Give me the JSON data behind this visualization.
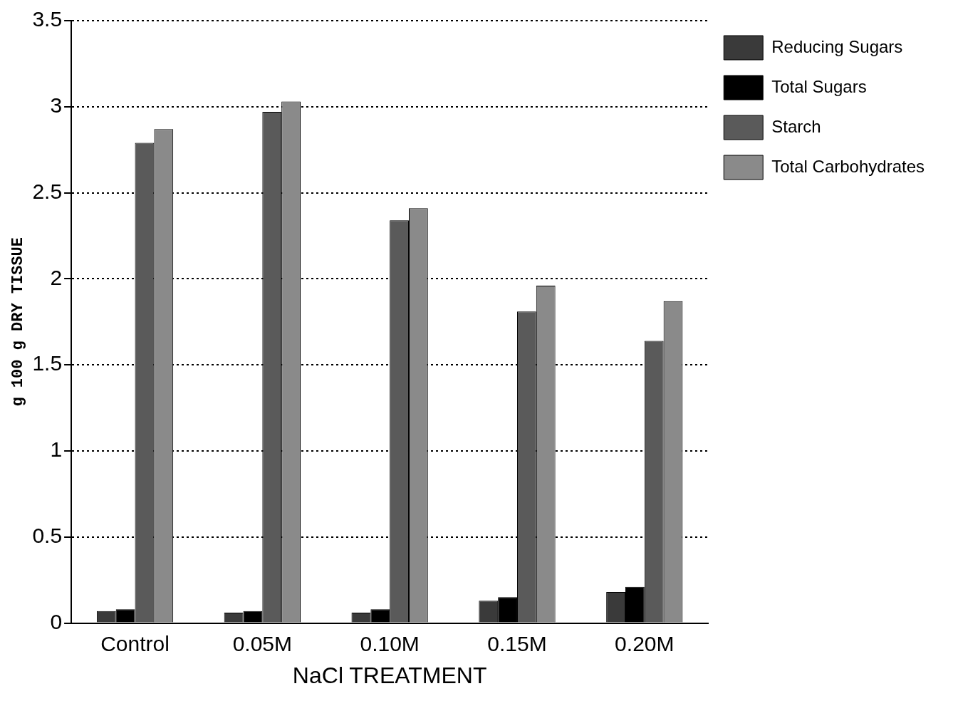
{
  "chart_data": {
    "type": "bar",
    "xlabel": "NaCl TREATMENT",
    "ylabel": "g 100 g DRY TISSUE",
    "categories": [
      "Control",
      "0.05M",
      "0.10M",
      "0.15M",
      "0.20M"
    ],
    "series": [
      {
        "name": "Reducing Sugars",
        "color": "#3a3a3a",
        "values": [
          0.07,
          0.06,
          0.06,
          0.13,
          0.18
        ]
      },
      {
        "name": "Total Sugars",
        "color": "#000000",
        "values": [
          0.08,
          0.07,
          0.08,
          0.15,
          0.21
        ]
      },
      {
        "name": "Starch",
        "color": "#5a5a5a",
        "values": [
          2.79,
          2.97,
          2.34,
          1.81,
          1.64
        ]
      },
      {
        "name": "Total Carbohydrates",
        "color": "#8a8a8a",
        "values": [
          2.87,
          3.03,
          2.41,
          1.96,
          1.87
        ]
      }
    ],
    "ylim": [
      0,
      3.5
    ],
    "yticks": [
      0,
      0.5,
      1,
      1.5,
      2,
      2.5,
      3,
      3.5
    ],
    "grid": "y",
    "legend": "top right"
  }
}
